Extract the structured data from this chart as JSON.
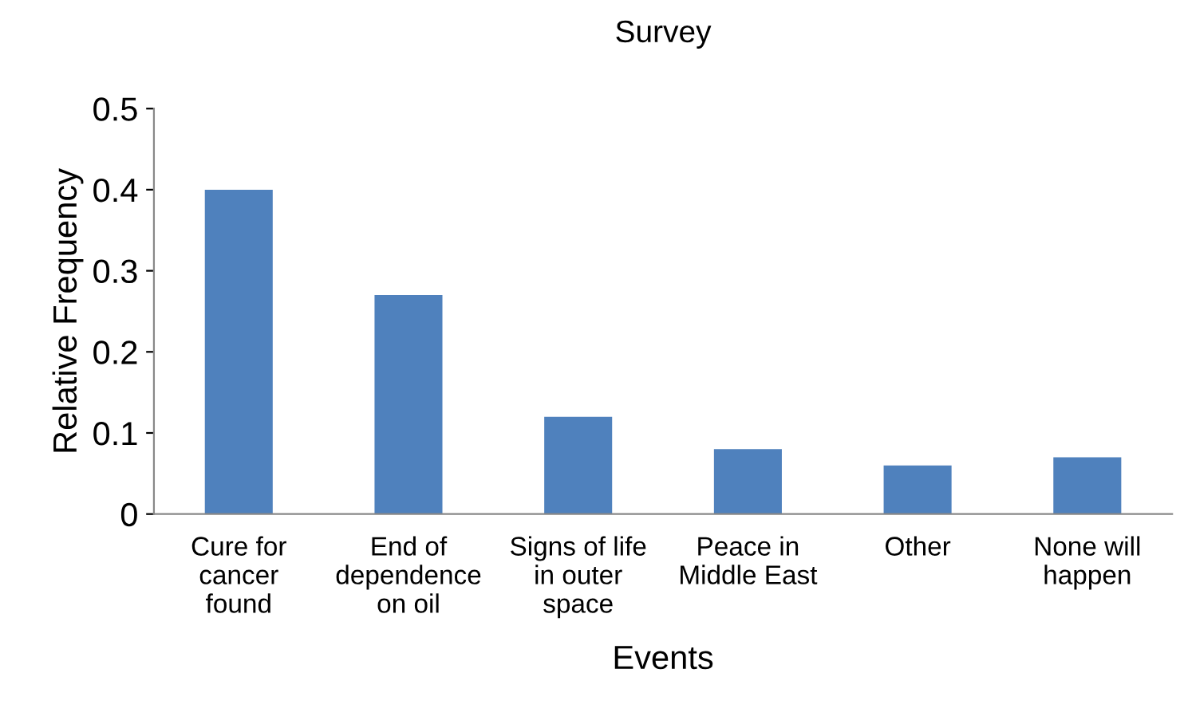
{
  "chart_data": {
    "type": "bar",
    "title": "Survey",
    "xlabel": "Events",
    "ylabel": "Relative Frequency",
    "categories": [
      "Cure for\ncancer\nfound",
      "End of\ndependence\non oil",
      "Signs of life\nin outer\nspace",
      "Peace in\nMiddle East",
      "Other",
      "None will\nhappen"
    ],
    "values": [
      0.4,
      0.27,
      0.12,
      0.08,
      0.06,
      0.07
    ],
    "color": "#4f81bd",
    "ylim": [
      0,
      0.5
    ],
    "yticks": [
      0,
      0.1,
      0.2,
      0.3,
      0.4,
      0.5
    ],
    "grid": false,
    "legend": false
  }
}
